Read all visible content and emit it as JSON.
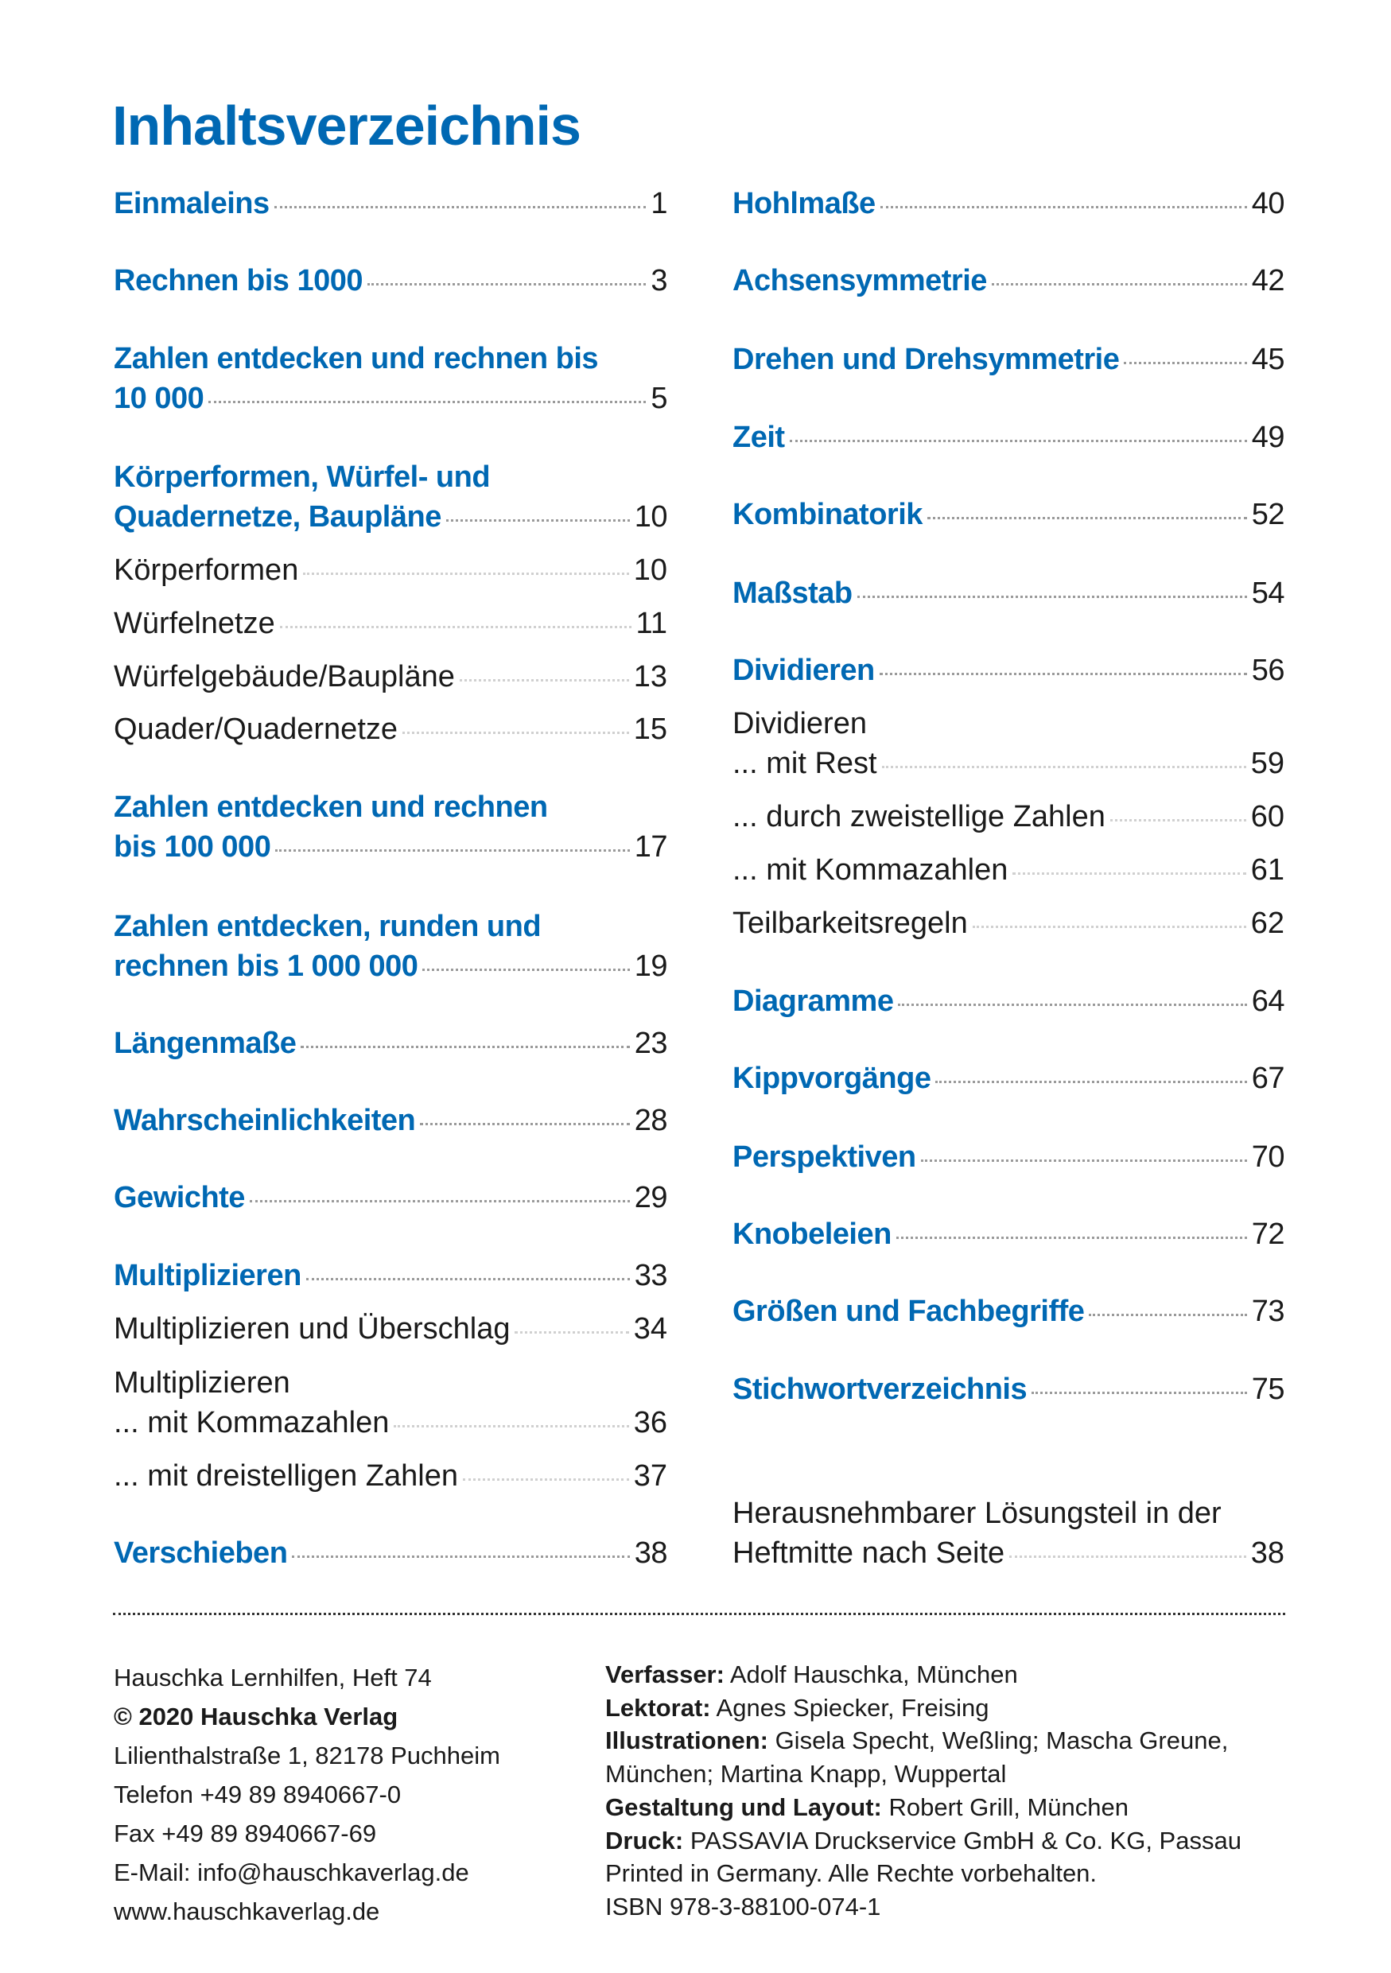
{
  "title": "Inhaltsverzeichnis",
  "colors": {
    "accent": "#0068b3",
    "text": "#1a1a1a"
  },
  "left": [
    {
      "type": "heading",
      "pre": "",
      "label": "Einmaleins",
      "page": "1"
    },
    {
      "type": "heading",
      "pre": "",
      "label": "Rechnen bis 1000",
      "page": "3"
    },
    {
      "type": "heading",
      "pre": "Zahlen entdecken und rechnen bis",
      "label": "10 000",
      "page": "5"
    },
    {
      "type": "heading",
      "pre": "Körperformen, Würfel- und",
      "label": "Quadernetze, Baupläne",
      "page": "10"
    },
    {
      "type": "sub",
      "pre": "",
      "label": "Körperformen",
      "page": "10"
    },
    {
      "type": "sub",
      "pre": "",
      "label": "Würfelnetze",
      "page": "11"
    },
    {
      "type": "sub",
      "pre": "",
      "label": "Würfelgebäude/Baupläne",
      "page": "13"
    },
    {
      "type": "sub",
      "pre": "",
      "label": "Quader/Quadernetze",
      "page": "15"
    },
    {
      "type": "heading",
      "pre": "Zahlen entdecken und rechnen",
      "label": "bis 100 000",
      "page": "17"
    },
    {
      "type": "heading",
      "pre": "Zahlen entdecken, runden und",
      "label": "rechnen bis 1 000 000",
      "page": "19"
    },
    {
      "type": "heading",
      "pre": "",
      "label": "Längenmaße",
      "page": "23"
    },
    {
      "type": "heading",
      "pre": "",
      "label": "Wahrscheinlichkeiten",
      "page": "28"
    },
    {
      "type": "heading",
      "pre": "",
      "label": "Gewichte",
      "page": "29"
    },
    {
      "type": "heading",
      "pre": "",
      "label": "Multiplizieren",
      "page": "33"
    },
    {
      "type": "sub",
      "pre": "",
      "label": "Multiplizieren und Überschlag",
      "page": "34"
    },
    {
      "type": "sub",
      "pre": "Multiplizieren",
      "label": "... mit Kommazahlen",
      "page": "36"
    },
    {
      "type": "sub",
      "pre": "",
      "label": "... mit dreistelligen Zahlen",
      "page": "37"
    },
    {
      "type": "heading",
      "pre": "",
      "label": "Verschieben",
      "page": "38"
    }
  ],
  "right": [
    {
      "type": "heading",
      "pre": "",
      "label": "Hohlmaße",
      "page": "40"
    },
    {
      "type": "heading",
      "pre": "",
      "label": "Achsensymmetrie",
      "page": "42"
    },
    {
      "type": "heading",
      "pre": "",
      "label": "Drehen und Drehsymmetrie",
      "page": "45"
    },
    {
      "type": "heading",
      "pre": "",
      "label": "Zeit",
      "page": "49"
    },
    {
      "type": "heading",
      "pre": "",
      "label": "Kombinatorik",
      "page": "52"
    },
    {
      "type": "heading",
      "pre": "",
      "label": "Maßstab",
      "page": "54"
    },
    {
      "type": "heading",
      "pre": "",
      "label": "Dividieren",
      "page": "56"
    },
    {
      "type": "sub",
      "pre": "Dividieren",
      "label": "... mit Rest",
      "page": "59"
    },
    {
      "type": "sub",
      "pre": "",
      "label": "... durch zweistellige Zahlen",
      "page": "60"
    },
    {
      "type": "sub",
      "pre": "",
      "label": "... mit Kommazahlen",
      "page": "61"
    },
    {
      "type": "sub",
      "pre": "",
      "label": "Teilbarkeitsregeln",
      "page": "62"
    },
    {
      "type": "heading",
      "pre": "",
      "label": "Diagramme",
      "page": "64"
    },
    {
      "type": "heading",
      "pre": "",
      "label": "Kippvorgänge",
      "page": "67"
    },
    {
      "type": "heading",
      "pre": "",
      "label": "Perspektiven",
      "page": "70"
    },
    {
      "type": "heading",
      "pre": "",
      "label": "Knobeleien",
      "page": "72"
    },
    {
      "type": "heading",
      "pre": "",
      "label": "Größen und Fachbegriffe",
      "page": "73"
    },
    {
      "type": "heading",
      "pre": "",
      "label": "Stichwortverzeichnis",
      "page": "75"
    },
    {
      "type": "sub",
      "pre": "Herausnehmbarer Lösungsteil in der",
      "label": "Heftmitte nach Seite",
      "page": "38"
    }
  ],
  "footer": {
    "left": [
      {
        "text": "Hauschka Lernhilfen, Heft 74",
        "bold": false
      },
      {
        "text": "© 2020 Hauschka Verlag",
        "bold": true
      },
      {
        "text": "Lilienthalstraße 1, 82178 Puchheim",
        "bold": false
      },
      {
        "text": "Telefon +49 89 8940667-0",
        "bold": false
      },
      {
        "text": "Fax +49 89 8940667-69",
        "bold": false
      },
      {
        "text": "E-Mail: info@hauschkaverlag.de",
        "bold": false
      },
      {
        "text": "www.hauschkaverlag.de",
        "bold": false
      }
    ],
    "right": [
      {
        "label": "Verfasser:",
        "text": " Adolf Hauschka, München"
      },
      {
        "label": "Lektorat:",
        "text": " Agnes Spiecker, Freising"
      },
      {
        "label": "Illustrationen:",
        "text": " Gisela Specht, Weßling; Mascha Greune,"
      },
      {
        "label": "",
        "text": "München; Martina Knapp, Wuppertal"
      },
      {
        "label": "Gestaltung und Layout:",
        "text": " Robert Grill, München"
      },
      {
        "label": "Druck:",
        "text": " PASSAVIA Druckservice GmbH & Co. KG, Passau"
      },
      {
        "label": "",
        "text": "Printed in Germany. Alle Rechte vorbehalten."
      },
      {
        "label": "",
        "text": "ISBN 978-3-88100-074-1"
      }
    ]
  }
}
